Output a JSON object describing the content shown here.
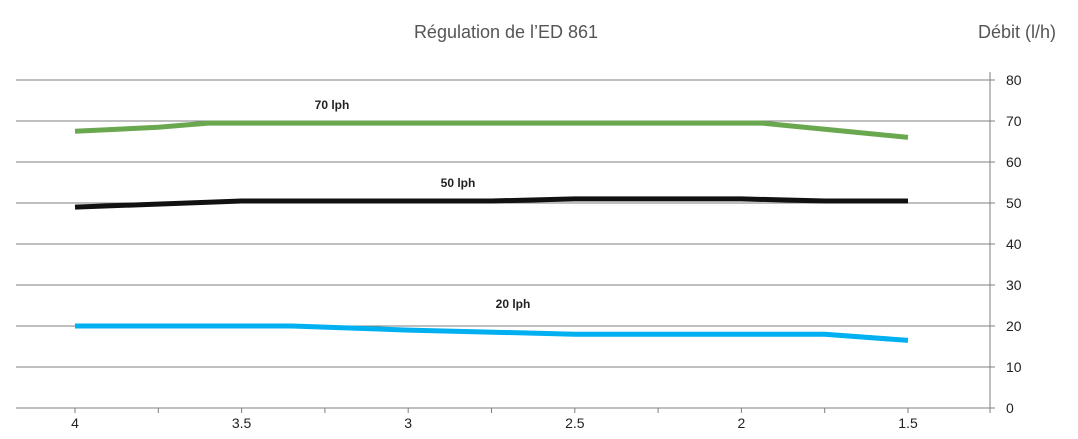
{
  "chart_data": {
    "type": "line",
    "title": "Régulation de l’ED 861",
    "ylabel": "Débit (l/h)",
    "xlabel": "",
    "x_ticks": [
      4,
      3.5,
      3,
      2.5,
      2,
      1.5
    ],
    "xlim": [
      4,
      1.5
    ],
    "ylim": [
      0,
      80
    ],
    "y_ticks": [
      0,
      10,
      20,
      30,
      40,
      50,
      60,
      70,
      80
    ],
    "grid": "horizontal",
    "series": [
      {
        "name": "70 lph",
        "color": "#6aa84f",
        "x": [
          4,
          3.75,
          3.6,
          3.5,
          3,
          2.5,
          2,
          1.94,
          1.75,
          1.5
        ],
        "y": [
          67.5,
          68.5,
          69.5,
          69.5,
          69.5,
          69.5,
          69.5,
          69.5,
          68,
          66
        ]
      },
      {
        "name": "50 lph",
        "color": "#111111",
        "x": [
          4,
          3.5,
          3,
          2.75,
          2.5,
          2,
          1.75,
          1.5
        ],
        "y": [
          49,
          50.5,
          50.5,
          50.5,
          51,
          51,
          50.5,
          50.5
        ]
      },
      {
        "name": "20 lph",
        "color": "#00b0f0",
        "x": [
          4,
          3.35,
          3,
          2.5,
          2,
          1.75,
          1.5
        ],
        "y": [
          20,
          20,
          19,
          18,
          18,
          18,
          16.5
        ]
      }
    ]
  }
}
